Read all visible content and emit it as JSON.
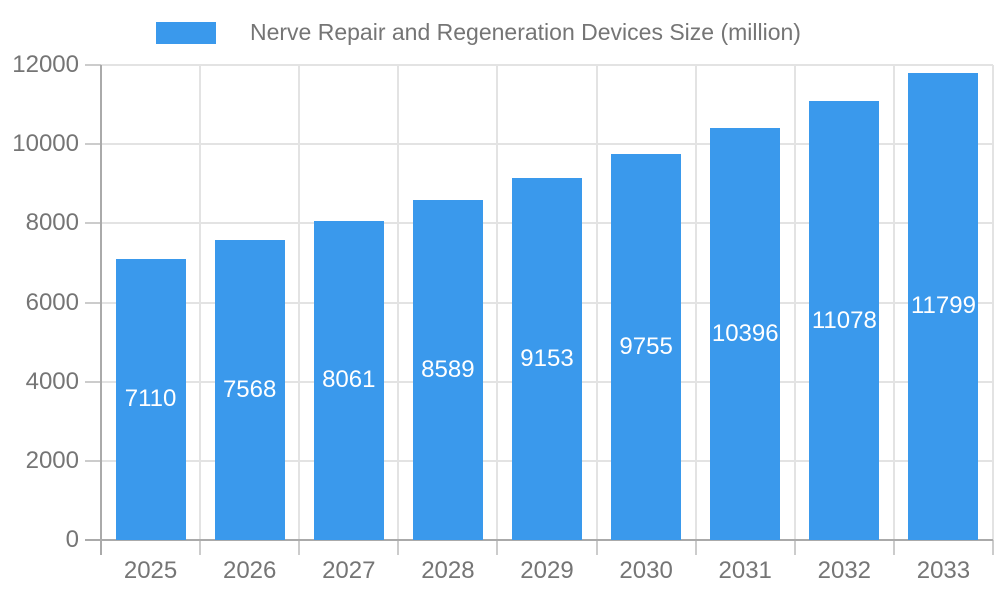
{
  "chart_data": {
    "type": "bar",
    "title": "Nerve Repair and Regeneration Devices Size (million)",
    "categories": [
      "2025",
      "2026",
      "2027",
      "2028",
      "2029",
      "2030",
      "2031",
      "2032",
      "2033"
    ],
    "values": [
      7110,
      7568,
      8061,
      8589,
      9153,
      9755,
      10396,
      11078,
      11799
    ],
    "series_name": "Nerve Repair and Regeneration Devices Size (million)",
    "ylim": [
      0,
      12000
    ],
    "y_tick_step": 2000,
    "y_tick_labels": [
      "0",
      "2000",
      "4000",
      "6000",
      "8000",
      "10000",
      "12000"
    ],
    "xlabel": "",
    "ylabel": "",
    "grid": true,
    "legend_position": "top",
    "value_labels": "inside-center",
    "colors": {
      "bar": "#3a99ec",
      "bar_value_text": "#ffffff",
      "axis_text": "#757575",
      "grid_line": "#e3e3e3",
      "axis_line": "#aaaaaa",
      "tick_mark": "#cccccc",
      "background": "#ffffff"
    }
  }
}
